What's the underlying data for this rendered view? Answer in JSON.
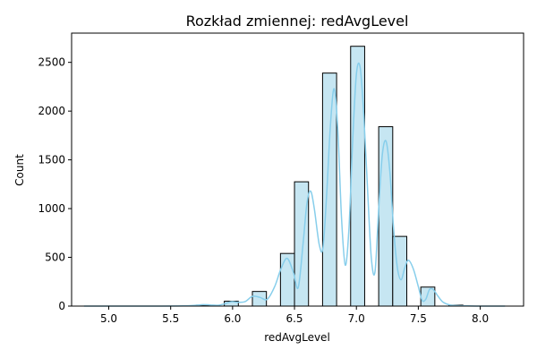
{
  "chart_data": {
    "type": "bar",
    "title": "Rozkład zmiennej: redAvgLevel",
    "xlabel": "redAvgLevel",
    "ylabel": "Count",
    "xlim": [
      4.7,
      8.35
    ],
    "ylim": [
      0,
      2800
    ],
    "xticks": [
      5.0,
      5.5,
      6.0,
      6.5,
      7.0,
      7.5,
      8.0
    ],
    "xtick_labels": [
      "5.0",
      "5.5",
      "6.0",
      "6.5",
      "7.0",
      "7.5",
      "8.0"
    ],
    "yticks": [
      0,
      500,
      1000,
      1500,
      2000,
      2500
    ],
    "ytick_labels": [
      "0",
      "500",
      "1000",
      "1500",
      "2000",
      "2500"
    ],
    "grid": false,
    "bar_fill": "#c6e6f2",
    "bar_edge": "#000000",
    "kde_color": "#87ceeb",
    "bins": [
      {
        "x0": 4.8,
        "x1": 4.9133,
        "count": 0
      },
      {
        "x0": 4.9133,
        "x1": 5.0267,
        "count": 0
      },
      {
        "x0": 5.0267,
        "x1": 5.14,
        "count": 0
      },
      {
        "x0": 5.14,
        "x1": 5.2533,
        "count": 0
      },
      {
        "x0": 5.2533,
        "x1": 5.3667,
        "count": 0
      },
      {
        "x0": 5.3667,
        "x1": 5.48,
        "count": 0
      },
      {
        "x0": 5.48,
        "x1": 5.5933,
        "count": 0
      },
      {
        "x0": 5.5933,
        "x1": 5.7067,
        "count": 0
      },
      {
        "x0": 5.7067,
        "x1": 5.82,
        "count": 10
      },
      {
        "x0": 5.82,
        "x1": 5.9333,
        "count": 0
      },
      {
        "x0": 5.9333,
        "x1": 6.0467,
        "count": 50
      },
      {
        "x0": 6.0467,
        "x1": 6.16,
        "count": 0
      },
      {
        "x0": 6.16,
        "x1": 6.2733,
        "count": 150
      },
      {
        "x0": 6.2733,
        "x1": 6.3867,
        "count": 0
      },
      {
        "x0": 6.3867,
        "x1": 6.5,
        "count": 540
      },
      {
        "x0": 6.5,
        "x1": 6.6133,
        "count": 1275
      },
      {
        "x0": 6.6133,
        "x1": 6.7267,
        "count": 0
      },
      {
        "x0": 6.7267,
        "x1": 6.84,
        "count": 2390
      },
      {
        "x0": 6.84,
        "x1": 6.9533,
        "count": 0
      },
      {
        "x0": 6.9533,
        "x1": 7.0667,
        "count": 2665
      },
      {
        "x0": 7.0667,
        "x1": 7.18,
        "count": 0
      },
      {
        "x0": 7.18,
        "x1": 7.2933,
        "count": 1840
      },
      {
        "x0": 7.2933,
        "x1": 7.4067,
        "count": 715
      },
      {
        "x0": 7.4067,
        "x1": 7.52,
        "count": 0
      },
      {
        "x0": 7.52,
        "x1": 7.6333,
        "count": 195
      },
      {
        "x0": 7.6333,
        "x1": 7.7467,
        "count": 0
      },
      {
        "x0": 7.7467,
        "x1": 7.86,
        "count": 10
      },
      {
        "x0": 7.86,
        "x1": 7.9733,
        "count": 0
      },
      {
        "x0": 7.9733,
        "x1": 8.0867,
        "count": 0
      },
      {
        "x0": 8.0867,
        "x1": 8.2,
        "count": 0
      }
    ],
    "kde": {
      "x": [
        4.8,
        5.0,
        5.2,
        5.4,
        5.6,
        5.7,
        5.76,
        5.82,
        5.88,
        5.94,
        5.99,
        6.04,
        6.1,
        6.16,
        6.22,
        6.28,
        6.34,
        6.39,
        6.44,
        6.49,
        6.53,
        6.57,
        6.6,
        6.63,
        6.66,
        6.7,
        6.73,
        6.76,
        6.79,
        6.82,
        6.85,
        6.88,
        6.91,
        6.94,
        6.97,
        7.0,
        7.03,
        7.06,
        7.09,
        7.12,
        7.15,
        7.18,
        7.21,
        7.24,
        7.27,
        7.3,
        7.33,
        7.36,
        7.39,
        7.42,
        7.46,
        7.5,
        7.53,
        7.56,
        7.59,
        7.62,
        7.66,
        7.7,
        7.76,
        7.82,
        7.9,
        8.0,
        8.1,
        8.2
      ],
      "y": [
        0,
        0,
        0,
        0,
        2,
        8,
        15,
        12,
        8,
        25,
        45,
        40,
        45,
        100,
        90,
        70,
        200,
        380,
        490,
        350,
        190,
        650,
        1050,
        1180,
        1000,
        630,
        600,
        1150,
        1850,
        2230,
        1800,
        900,
        420,
        800,
        1700,
        2380,
        2450,
        1950,
        1200,
        500,
        350,
        1000,
        1560,
        1690,
        1380,
        800,
        400,
        270,
        390,
        470,
        380,
        200,
        60,
        70,
        170,
        170,
        100,
        40,
        10,
        5,
        2,
        0,
        0,
        0
      ]
    }
  }
}
